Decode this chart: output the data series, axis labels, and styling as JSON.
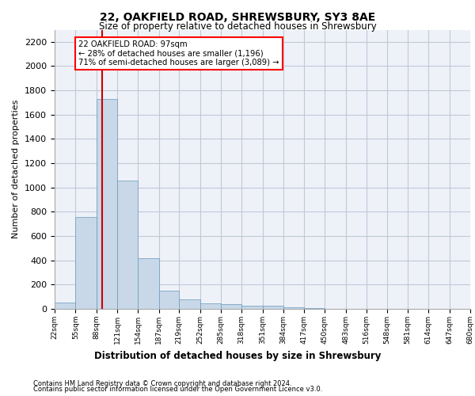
{
  "title1": "22, OAKFIELD ROAD, SHREWSBURY, SY3 8AE",
  "title2": "Size of property relative to detached houses in Shrewsbury",
  "xlabel": "Distribution of detached houses by size in Shrewsbury",
  "ylabel": "Number of detached properties",
  "footnote1": "Contains HM Land Registry data © Crown copyright and database right 2024.",
  "footnote2": "Contains public sector information licensed under the Open Government Licence v3.0.",
  "annotation_line1": "22 OAKFIELD ROAD: 97sqm",
  "annotation_line2": "← 28% of detached houses are smaller (1,196)",
  "annotation_line3": "71% of semi-detached houses are larger (3,089) →",
  "bar_color": "#c8d8e8",
  "bar_edge_color": "#6699bb",
  "grid_color": "#c0c8d8",
  "background_color": "#eef2f8",
  "red_line_color": "#cc0000",
  "bin_edges": [
    22,
    55,
    88,
    121,
    154,
    187,
    219,
    252,
    285,
    318,
    351,
    384,
    417,
    450,
    483,
    516,
    548,
    581,
    614,
    647,
    680
  ],
  "bar_heights": [
    50,
    760,
    1730,
    1060,
    420,
    150,
    80,
    45,
    40,
    25,
    25,
    10,
    5,
    3,
    2,
    1,
    1,
    1,
    0,
    0
  ],
  "property_size": 97,
  "ylim": [
    0,
    2300
  ],
  "yticks": [
    0,
    200,
    400,
    600,
    800,
    1000,
    1200,
    1400,
    1600,
    1800,
    2000,
    2200
  ]
}
